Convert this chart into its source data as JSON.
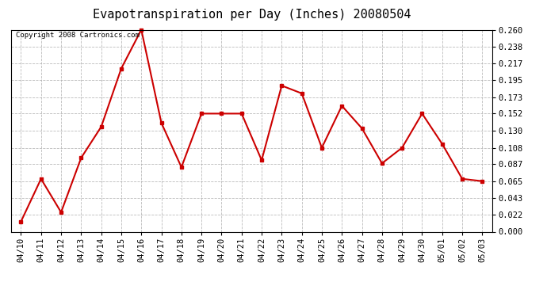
{
  "title": "Evapotranspiration per Day (Inches) 20080504",
  "copyright_text": "Copyright 2008 Cartronics.com",
  "x_labels": [
    "04/10",
    "04/11",
    "04/12",
    "04/13",
    "04/14",
    "04/15",
    "04/16",
    "04/17",
    "04/18",
    "04/19",
    "04/20",
    "04/21",
    "04/22",
    "04/23",
    "04/24",
    "04/25",
    "04/26",
    "04/27",
    "04/28",
    "04/29",
    "04/30",
    "05/01",
    "05/02",
    "05/03"
  ],
  "y_values": [
    0.013,
    0.068,
    0.025,
    0.095,
    0.135,
    0.21,
    0.26,
    0.14,
    0.083,
    0.152,
    0.152,
    0.152,
    0.092,
    0.188,
    0.178,
    0.108,
    0.162,
    0.133,
    0.088,
    0.108,
    0.152,
    0.113,
    0.068,
    0.065
  ],
  "line_color": "#cc0000",
  "marker": "s",
  "marker_size": 2.5,
  "line_width": 1.5,
  "ylim": [
    0.0,
    0.26
  ],
  "yticks": [
    0.0,
    0.022,
    0.043,
    0.065,
    0.087,
    0.108,
    0.13,
    0.152,
    0.173,
    0.195,
    0.217,
    0.238,
    0.26
  ],
  "background_color": "#ffffff",
  "grid_color": "#aaaaaa",
  "title_fontsize": 11,
  "tick_fontsize": 7.5,
  "copyright_fontsize": 6.5
}
